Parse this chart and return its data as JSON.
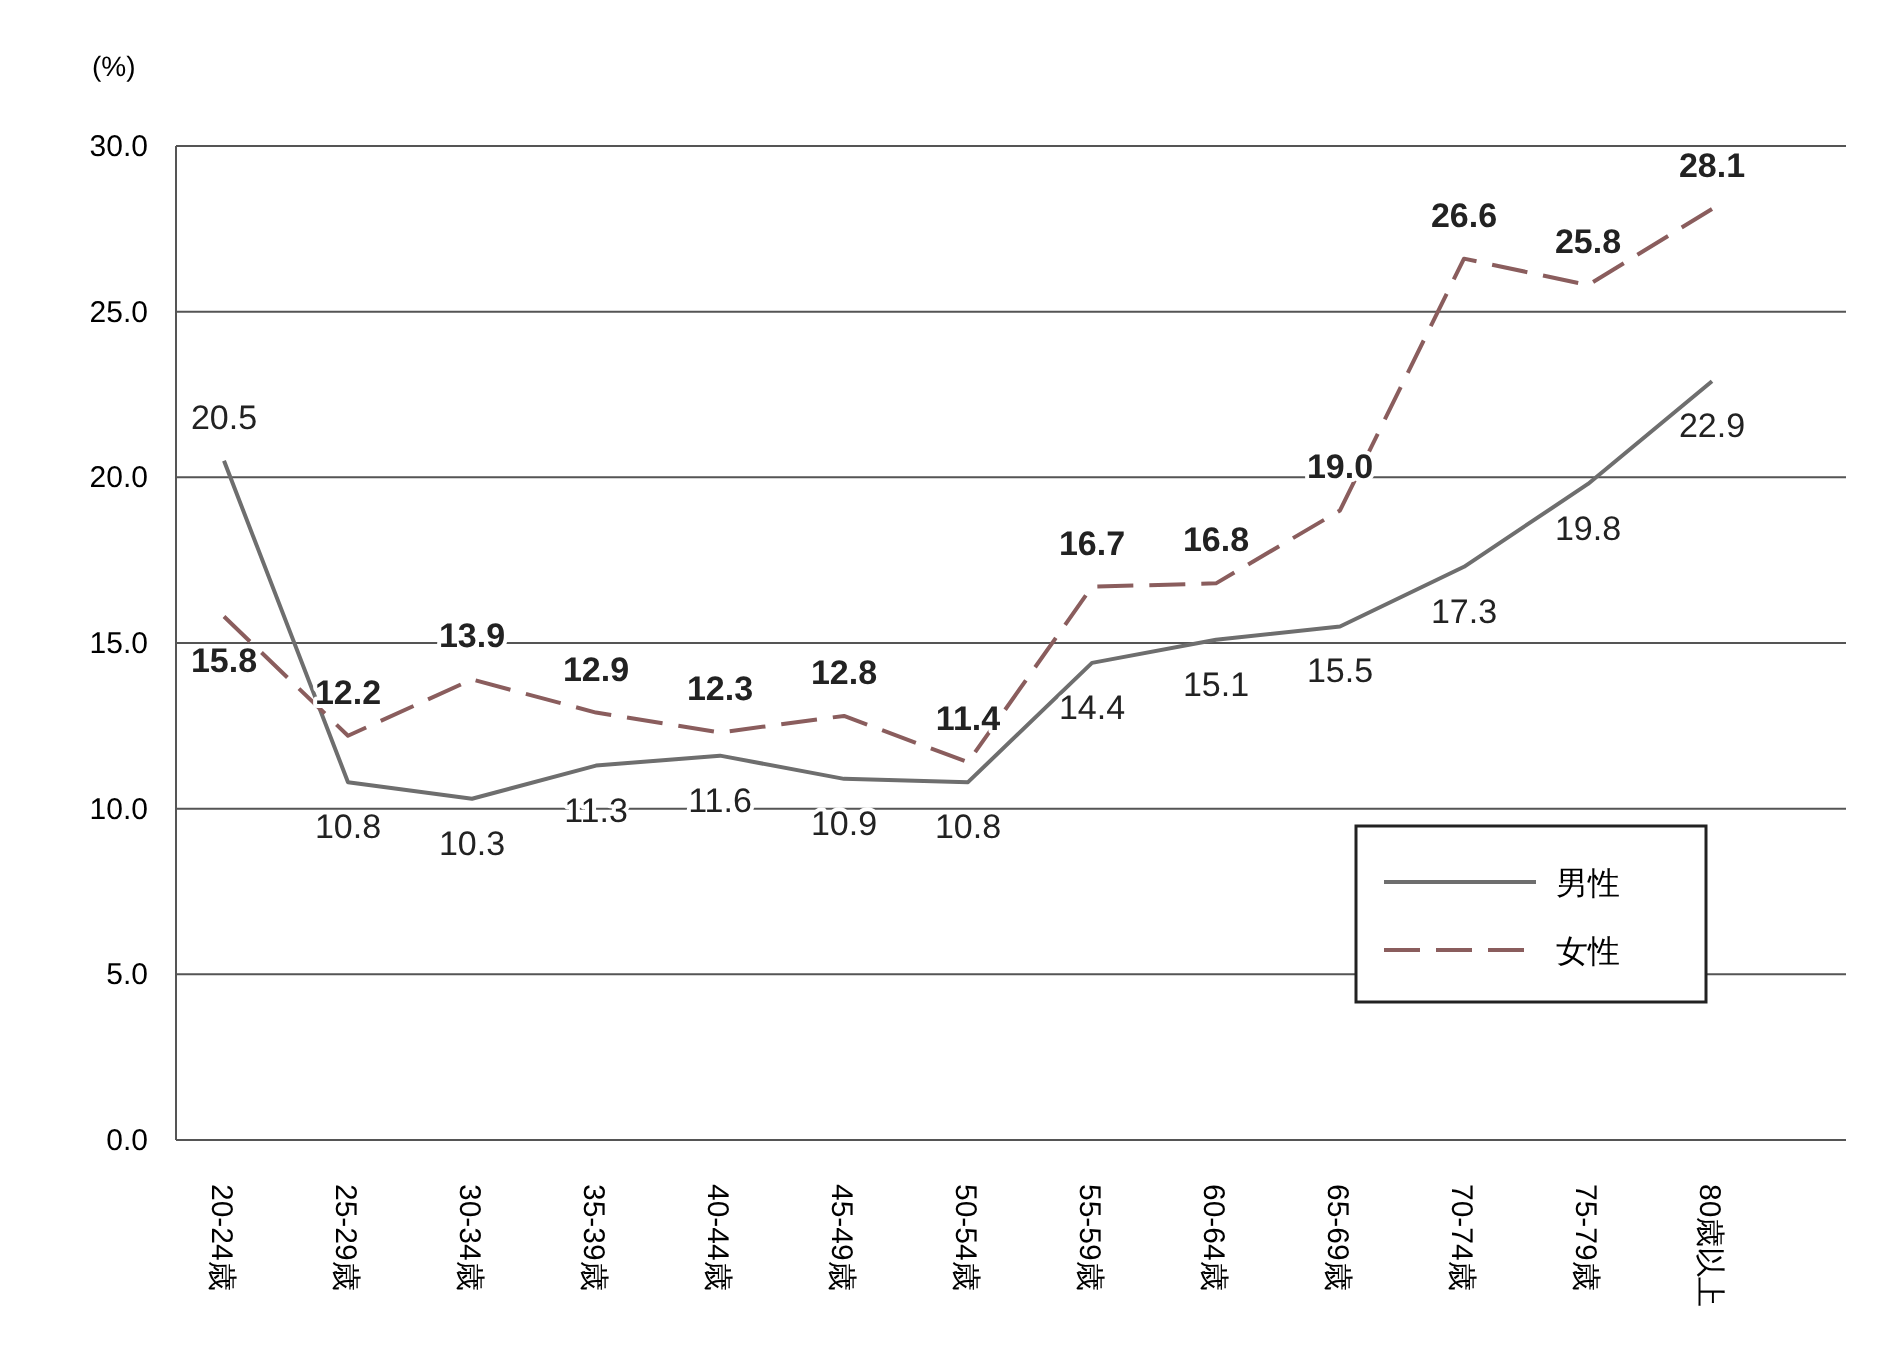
{
  "chart_data": {
    "type": "line",
    "ylabel": "(%)",
    "categories": [
      "20-24歳",
      "25-29歳",
      "30-34歳",
      "35-39歳",
      "40-44歳",
      "45-49歳",
      "50-54歳",
      "55-59歳",
      "60-64歳",
      "65-69歳",
      "70-74歳",
      "75-79歳",
      "80歳以上"
    ],
    "series": [
      {
        "name": "男性",
        "color": "#6e6e6e",
        "line_style": "solid",
        "values": [
          20.5,
          10.8,
          10.3,
          11.3,
          11.6,
          10.9,
          10.8,
          14.4,
          15.1,
          15.5,
          17.3,
          19.8,
          22.9
        ],
        "value_labels": [
          "20.5",
          "10.8",
          "10.3",
          "11.3",
          "11.6",
          "10.9",
          "10.8",
          "14.4",
          "15.1",
          "15.5",
          "17.3",
          "19.8",
          "22.9"
        ]
      },
      {
        "name": "女性",
        "color": "#8a5d5d",
        "line_style": "dashed",
        "values": [
          15.8,
          12.2,
          13.9,
          12.9,
          12.3,
          12.8,
          11.4,
          16.7,
          16.8,
          19.0,
          26.6,
          25.8,
          28.1
        ],
        "value_labels": [
          "15.8",
          "12.2",
          "13.9",
          "12.9",
          "12.3",
          "12.8",
          "11.4",
          "16.7",
          "16.8",
          "19.0",
          "26.6",
          "25.8",
          "28.1"
        ]
      }
    ],
    "ylim": [
      0,
      30
    ],
    "yticks": [
      {
        "value": 0,
        "label": "0.0"
      },
      {
        "value": 5,
        "label": "5.0"
      },
      {
        "value": 10,
        "label": "10.0"
      },
      {
        "value": 15,
        "label": "15.0"
      },
      {
        "value": 20,
        "label": "20.0"
      },
      {
        "value": 25,
        "label": "25.0"
      },
      {
        "value": 30,
        "label": "30.0"
      }
    ],
    "grid": "y",
    "legend": "bottom right"
  }
}
